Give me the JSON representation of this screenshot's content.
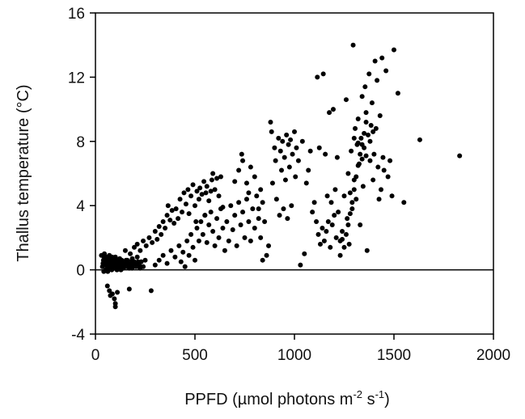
{
  "chart_data": {
    "type": "scatter",
    "title": "",
    "xlabel": "PPFD (µmol photons m",
    "xlabel_sup1": "-2",
    "xlabel_mid": " s",
    "xlabel_sup2": "-1",
    "xlabel_end": ")",
    "ylabel": "Thallus temperature (°C)",
    "xlim": [
      0,
      2000
    ],
    "ylim": [
      -4,
      16
    ],
    "xticks": [
      "0",
      "500",
      "1000",
      "1500",
      "2000"
    ],
    "yticks": [
      "-4",
      "0",
      "4",
      "8",
      "12",
      "16"
    ],
    "reference_line_y": 0,
    "grid": false,
    "marker_color": "#000000",
    "series": [
      {
        "points": [
          [
            30,
            0.9
          ],
          [
            35,
            0.2
          ],
          [
            40,
            0.6
          ],
          [
            42,
            -0.1
          ],
          [
            45,
            1.0
          ],
          [
            48,
            0.3
          ],
          [
            50,
            0.7
          ],
          [
            52,
            0.0
          ],
          [
            55,
            0.5
          ],
          [
            58,
            0.8
          ],
          [
            60,
            0.2
          ],
          [
            62,
            -0.1
          ],
          [
            65,
            0.6
          ],
          [
            68,
            0.4
          ],
          [
            70,
            0.9
          ],
          [
            72,
            0.1
          ],
          [
            75,
            0.5
          ],
          [
            78,
            0.3
          ],
          [
            80,
            0.7
          ],
          [
            82,
            0.0
          ],
          [
            85,
            0.4
          ],
          [
            88,
            0.2
          ],
          [
            90,
            0.6
          ],
          [
            92,
            0.3
          ],
          [
            95,
            0.1
          ],
          [
            98,
            0.5
          ],
          [
            100,
            0.8
          ],
          [
            102,
            0.2
          ],
          [
            105,
            0.4
          ],
          [
            108,
            0.0
          ],
          [
            110,
            0.6
          ],
          [
            112,
            0.3
          ],
          [
            115,
            0.1
          ],
          [
            118,
            0.5
          ],
          [
            120,
            0.2
          ],
          [
            122,
            0.7
          ],
          [
            125,
            0.4
          ],
          [
            128,
            0.0
          ],
          [
            130,
            0.3
          ],
          [
            132,
            0.6
          ],
          [
            135,
            0.2
          ],
          [
            138,
            0.4
          ],
          [
            140,
            0.1
          ],
          [
            145,
            0.5
          ],
          [
            150,
            0.3
          ],
          [
            155,
            0.2
          ],
          [
            160,
            0.6
          ],
          [
            165,
            0.4
          ],
          [
            170,
            0.1
          ],
          [
            175,
            0.5
          ],
          [
            180,
            0.3
          ],
          [
            185,
            0.7
          ],
          [
            190,
            0.2
          ],
          [
            195,
            0.5
          ],
          [
            200,
            0.4
          ],
          [
            210,
            0.8
          ],
          [
            220,
            0.3
          ],
          [
            230,
            0.5
          ],
          [
            240,
            0.2
          ],
          [
            250,
            0.6
          ],
          [
            38,
            0.4
          ],
          [
            44,
            0.8
          ],
          [
            54,
            0.3
          ],
          [
            64,
            0.1
          ],
          [
            74,
            0.6
          ],
          [
            84,
            0.8
          ],
          [
            94,
            0.3
          ],
          [
            104,
            0.6
          ],
          [
            114,
            0.4
          ],
          [
            124,
            0.2
          ],
          [
            134,
            0.5
          ],
          [
            144,
            0.3
          ],
          [
            154,
            0.6
          ],
          [
            164,
            0.2
          ],
          [
            174,
            0.4
          ],
          [
            184,
            0.1
          ],
          [
            194,
            0.3
          ],
          [
            204,
            0.2
          ],
          [
            214,
            0.5
          ],
          [
            224,
            0.1
          ],
          [
            60,
            -1.0
          ],
          [
            70,
            -1.3
          ],
          [
            75,
            -1.6
          ],
          [
            85,
            -1.5
          ],
          [
            95,
            -1.8
          ],
          [
            100,
            -2.1
          ],
          [
            100,
            -2.3
          ],
          [
            110,
            -1.4
          ],
          [
            170,
            -1.2
          ],
          [
            280,
            -1.3
          ],
          [
            150,
            1.2
          ],
          [
            175,
            1.0
          ],
          [
            195,
            1.4
          ],
          [
            210,
            1.6
          ],
          [
            225,
            1.2
          ],
          [
            240,
            1.8
          ],
          [
            255,
            1.5
          ],
          [
            270,
            2.0
          ],
          [
            285,
            1.7
          ],
          [
            300,
            2.4
          ],
          [
            310,
            1.9
          ],
          [
            320,
            2.7
          ],
          [
            330,
            2.2
          ],
          [
            340,
            3.0
          ],
          [
            350,
            2.6
          ],
          [
            360,
            3.4
          ],
          [
            365,
            4.0
          ],
          [
            375,
            3.1
          ],
          [
            385,
            3.7
          ],
          [
            395,
            2.9
          ],
          [
            405,
            3.8
          ],
          [
            415,
            3.2
          ],
          [
            425,
            4.4
          ],
          [
            435,
            3.6
          ],
          [
            445,
            4.8
          ],
          [
            455,
            4.1
          ],
          [
            465,
            5.0
          ],
          [
            470,
            3.5
          ],
          [
            480,
            4.6
          ],
          [
            490,
            5.3
          ],
          [
            500,
            4.0
          ],
          [
            505,
            3.0
          ],
          [
            510,
            4.9
          ],
          [
            520,
            4.4
          ],
          [
            525,
            5.1
          ],
          [
            535,
            4.7
          ],
          [
            545,
            5.5
          ],
          [
            550,
            3.4
          ],
          [
            555,
            4.8
          ],
          [
            560,
            5.2
          ],
          [
            570,
            4.3
          ],
          [
            580,
            4.9
          ],
          [
            585,
            5.6
          ],
          [
            590,
            6.0
          ],
          [
            600,
            5.0
          ],
          [
            610,
            5.7
          ],
          [
            620,
            4.6
          ],
          [
            630,
            5.8
          ],
          [
            640,
            3.9
          ],
          [
            300,
            0.3
          ],
          [
            320,
            0.6
          ],
          [
            340,
            0.9
          ],
          [
            360,
            0.4
          ],
          [
            380,
            1.2
          ],
          [
            400,
            0.8
          ],
          [
            420,
            1.5
          ],
          [
            430,
            0.5
          ],
          [
            440,
            1.1
          ],
          [
            450,
            0.2
          ],
          [
            460,
            1.8
          ],
          [
            470,
            0.9
          ],
          [
            480,
            2.2
          ],
          [
            490,
            1.4
          ],
          [
            500,
            0.6
          ],
          [
            510,
            2.6
          ],
          [
            520,
            1.8
          ],
          [
            530,
            3.0
          ],
          [
            540,
            2.2
          ],
          [
            550,
            3.4
          ],
          [
            560,
            1.7
          ],
          [
            570,
            2.8
          ],
          [
            580,
            3.6
          ],
          [
            590,
            2.4
          ],
          [
            600,
            1.5
          ],
          [
            610,
            3.2
          ],
          [
            620,
            2.0
          ],
          [
            630,
            3.8
          ],
          [
            640,
            2.6
          ],
          [
            650,
            1.2
          ],
          [
            660,
            3.0
          ],
          [
            670,
            1.8
          ],
          [
            680,
            4.0
          ],
          [
            690,
            2.5
          ],
          [
            700,
            3.4
          ],
          [
            710,
            1.5
          ],
          [
            720,
            4.2
          ],
          [
            730,
            2.8
          ],
          [
            740,
            3.6
          ],
          [
            750,
            2.0
          ],
          [
            760,
            4.4
          ],
          [
            770,
            3.0
          ],
          [
            780,
            1.8
          ],
          [
            790,
            3.8
          ],
          [
            800,
            2.6
          ],
          [
            810,
            4.6
          ],
          [
            820,
            3.2
          ],
          [
            830,
            2.0
          ],
          [
            840,
            4.2
          ],
          [
            850,
            3.0
          ],
          [
            700,
            5.5
          ],
          [
            720,
            6.2
          ],
          [
            735,
            7.2
          ],
          [
            740,
            6.8
          ],
          [
            760,
            5.4
          ],
          [
            770,
            4.8
          ],
          [
            780,
            6.4
          ],
          [
            800,
            5.8
          ],
          [
            820,
            3.8
          ],
          [
            830,
            5.0
          ],
          [
            840,
            0.6
          ],
          [
            860,
            0.9
          ],
          [
            870,
            1.5
          ],
          [
            880,
            9.2
          ],
          [
            885,
            8.6
          ],
          [
            890,
            5.4
          ],
          [
            900,
            7.6
          ],
          [
            905,
            6.8
          ],
          [
            910,
            4.4
          ],
          [
            920,
            8.2
          ],
          [
            925,
            3.4
          ],
          [
            930,
            7.4
          ],
          [
            935,
            6.2
          ],
          [
            940,
            8.0
          ],
          [
            945,
            3.8
          ],
          [
            950,
            7.0
          ],
          [
            955,
            5.6
          ],
          [
            960,
            8.4
          ],
          [
            965,
            3.2
          ],
          [
            970,
            7.8
          ],
          [
            975,
            6.4
          ],
          [
            980,
            8.1
          ],
          [
            985,
            4.0
          ],
          [
            990,
            7.2
          ],
          [
            1000,
            8.6
          ],
          [
            1005,
            5.8
          ],
          [
            1010,
            7.6
          ],
          [
            1020,
            6.8
          ],
          [
            1030,
            0.3
          ],
          [
            1040,
            8.0
          ],
          [
            1050,
            1.0
          ],
          [
            1060,
            5.4
          ],
          [
            1070,
            6.2
          ],
          [
            1080,
            7.4
          ],
          [
            1090,
            3.6
          ],
          [
            1100,
            4.2
          ],
          [
            1110,
            3.0
          ],
          [
            1115,
            12.0
          ],
          [
            1120,
            2.2
          ],
          [
            1125,
            7.6
          ],
          [
            1130,
            1.6
          ],
          [
            1140,
            2.6
          ],
          [
            1145,
            12.2
          ],
          [
            1150,
            1.8
          ],
          [
            1155,
            7.2
          ],
          [
            1160,
            2.4
          ],
          [
            1165,
            4.6
          ],
          [
            1170,
            3.0
          ],
          [
            1175,
            9.8
          ],
          [
            1180,
            1.4
          ],
          [
            1185,
            4.2
          ],
          [
            1190,
            2.8
          ],
          [
            1195,
            10.0
          ],
          [
            1200,
            3.4
          ],
          [
            1205,
            5.0
          ],
          [
            1210,
            2.0
          ],
          [
            1215,
            7.0
          ],
          [
            1220,
            3.6
          ],
          [
            1230,
            1.8
          ],
          [
            1240,
            2.4
          ],
          [
            1250,
            4.6
          ],
          [
            1260,
            10.6
          ],
          [
            1265,
            3.2
          ],
          [
            1270,
            6.0
          ],
          [
            1275,
            1.6
          ],
          [
            1280,
            4.8
          ],
          [
            1285,
            7.4
          ],
          [
            1290,
            3.8
          ],
          [
            1295,
            14.0
          ],
          [
            1300,
            5.6
          ],
          [
            1305,
            8.8
          ],
          [
            1310,
            4.4
          ],
          [
            1315,
            7.8
          ],
          [
            1320,
            9.4
          ],
          [
            1325,
            6.6
          ],
          [
            1330,
            2.8
          ],
          [
            1335,
            8.2
          ],
          [
            1340,
            10.8
          ],
          [
            1345,
            5.2
          ],
          [
            1350,
            7.6
          ],
          [
            1355,
            11.4
          ],
          [
            1360,
            9.8
          ],
          [
            1365,
            1.2
          ],
          [
            1370,
            8.4
          ],
          [
            1375,
            12.2
          ],
          [
            1380,
            6.8
          ],
          [
            1385,
            9.0
          ],
          [
            1390,
            10.4
          ],
          [
            1395,
            5.6
          ],
          [
            1400,
            7.2
          ],
          [
            1405,
            13.0
          ],
          [
            1410,
            8.8
          ],
          [
            1415,
            11.8
          ],
          [
            1420,
            6.4
          ],
          [
            1425,
            4.4
          ],
          [
            1430,
            9.6
          ],
          [
            1435,
            5.0
          ],
          [
            1440,
            13.2
          ],
          [
            1445,
            7.0
          ],
          [
            1450,
            6.2
          ],
          [
            1460,
            12.4
          ],
          [
            1470,
            5.8
          ],
          [
            1480,
            6.8
          ],
          [
            1490,
            4.6
          ],
          [
            1500,
            13.7
          ],
          [
            1520,
            11.0
          ],
          [
            1550,
            4.2
          ],
          [
            1630,
            8.1
          ],
          [
            1830,
            7.1
          ],
          [
            1250,
            1.4
          ],
          [
            1260,
            2.2
          ],
          [
            1270,
            2.8
          ],
          [
            1280,
            3.5
          ],
          [
            1290,
            4.2
          ],
          [
            1300,
            5.0
          ],
          [
            1310,
            5.8
          ],
          [
            1320,
            6.5
          ],
          [
            1330,
            7.2
          ],
          [
            1340,
            7.8
          ],
          [
            1230,
            0.9
          ],
          [
            1240,
            1.9
          ],
          [
            1350,
            8.5
          ],
          [
            1360,
            9.2
          ],
          [
            1300,
            8.2
          ],
          [
            1320,
            7.9
          ],
          [
            1340,
            6.9
          ],
          [
            1360,
            7.1
          ],
          [
            1380,
            8.0
          ],
          [
            1395,
            8.6
          ]
        ]
      }
    ]
  }
}
